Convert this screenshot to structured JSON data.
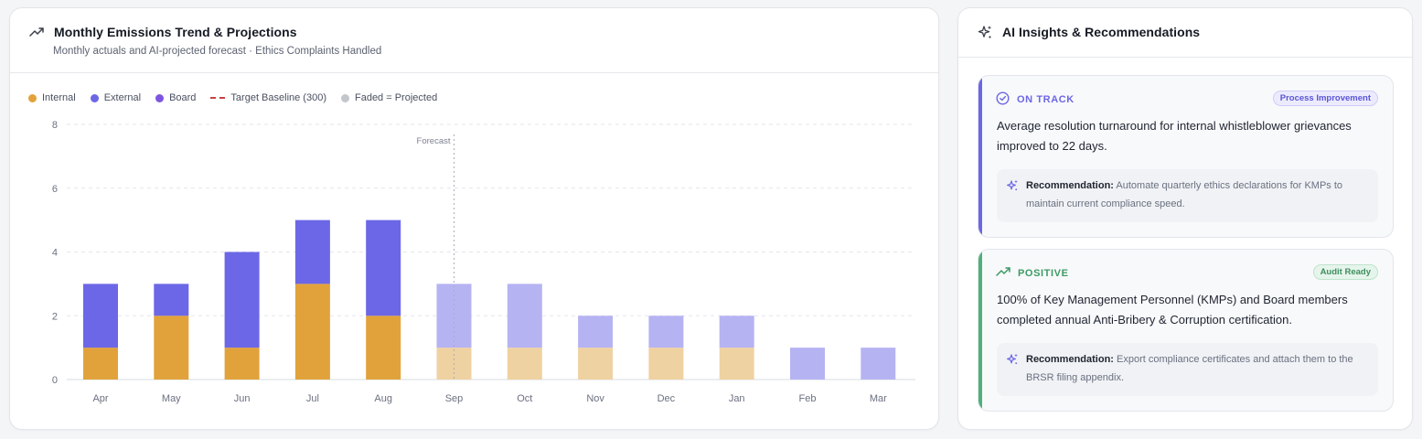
{
  "chart_panel": {
    "title": "Monthly Emissions Trend & Projections",
    "subtitle": "Monthly actuals and AI-projected forecast · Ethics Complaints Handled",
    "legend": {
      "internal": "Internal",
      "external": "External",
      "board": "Board",
      "target": "Target Baseline (300)",
      "projected": "Faded = Projected"
    },
    "forecast_label": "Forecast"
  },
  "colors": {
    "internal": "#E2A23B",
    "external": "#6C67E6",
    "board": "#7E55E0",
    "target": "#C94141",
    "projected_dot": "#C3C6CC",
    "internal_projected": "#EFD2A1",
    "external_projected": "#B6B3F3",
    "on_track": "#6C67E6",
    "positive": "#4FB07A"
  },
  "chart_data": {
    "type": "bar",
    "stacked": true,
    "categories": [
      "Apr",
      "May",
      "Jun",
      "Jul",
      "Aug",
      "Sep",
      "Oct",
      "Nov",
      "Dec",
      "Jan",
      "Feb",
      "Mar"
    ],
    "series": [
      {
        "name": "Internal",
        "values": [
          1,
          2,
          1,
          3,
          2,
          1,
          1,
          1,
          1,
          1,
          0,
          0
        ]
      },
      {
        "name": "External",
        "values": [
          2,
          1,
          3,
          2,
          3,
          2,
          2,
          1,
          1,
          1,
          1,
          1
        ]
      },
      {
        "name": "Board",
        "values": [
          0,
          0,
          0,
          0,
          0,
          0,
          0,
          0,
          0,
          0,
          0,
          0
        ]
      }
    ],
    "projected_from": "Sep",
    "ylim": [
      0,
      8
    ],
    "yticks": [
      0,
      2,
      4,
      6,
      8
    ],
    "grid": true,
    "legend_position": "top-left"
  },
  "insights_panel": {
    "title": "AI Insights & Recommendations",
    "items": [
      {
        "status": "ON TRACK",
        "badge": "Process Improvement",
        "text": "Average resolution turnaround for internal whistleblower grievances improved to 22 days.",
        "rec_label": "Recommendation:",
        "rec_text": "Automate quarterly ethics declarations for KMPs to maintain current compliance speed."
      },
      {
        "status": "POSITIVE",
        "badge": "Audit Ready",
        "text": "100% of Key Management Personnel (KMPs) and Board members completed annual Anti-Bribery & Corruption certification.",
        "rec_label": "Recommendation:",
        "rec_text": "Export compliance certificates and attach them to the BRSR filing appendix."
      }
    ]
  }
}
